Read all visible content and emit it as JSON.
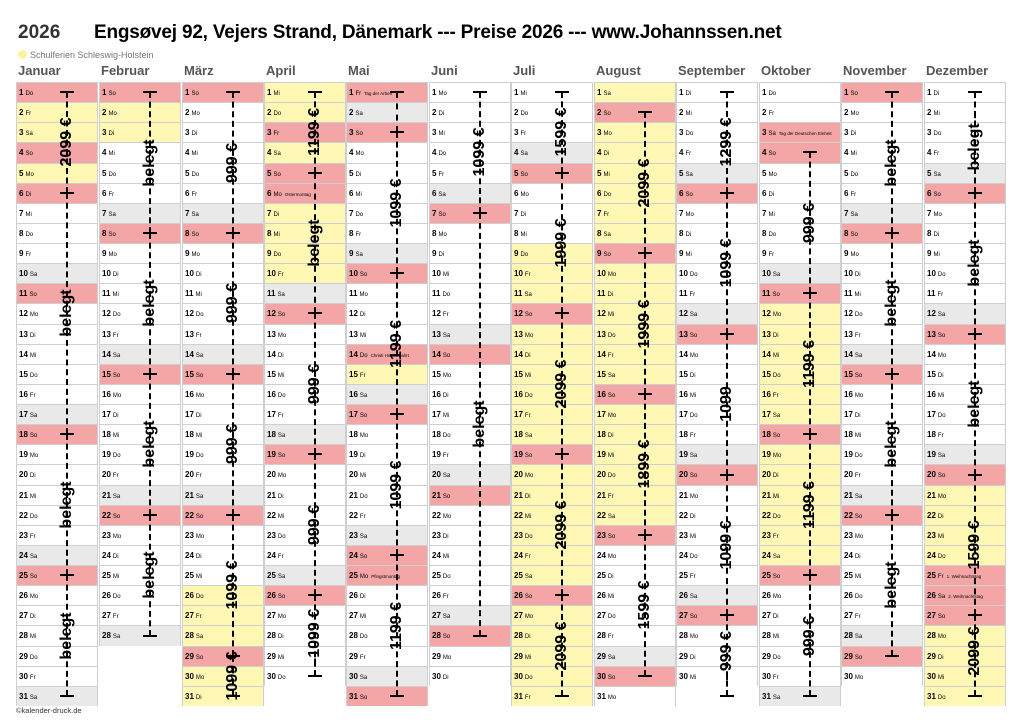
{
  "header": {
    "year": "2026",
    "title": "Engsøvej 92, Vejers Strand, Dänemark --- Preise 2026 ---  www.Johannssen.net",
    "legend": "Schulferien Schleswig-Holstein",
    "credit": "©kalender-druck.de"
  },
  "colors": {
    "sunday": "#f4a6a6",
    "weekend": "#e9e9e9",
    "school": "#fff8b5"
  },
  "months": [
    {
      "name": "Januar",
      "days": 31,
      "start": 3,
      "holidays": {
        "1": "",
        "6": ""
      },
      "school": [
        [
          1,
          6
        ]
      ]
    },
    {
      "name": "Februar",
      "days": 28,
      "start": 6,
      "holidays": {},
      "school": [
        [
          2,
          3
        ]
      ]
    },
    {
      "name": "März",
      "days": 31,
      "start": 6,
      "holidays": {},
      "school": [
        [
          26,
          31
        ]
      ]
    },
    {
      "name": "April",
      "days": 30,
      "start": 2,
      "holidays": {
        "3": "",
        "5": "",
        "6": "Ostermontag"
      },
      "school": [
        [
          1,
          10
        ]
      ]
    },
    {
      "name": "Mai",
      "days": 31,
      "start": 4,
      "holidays": {
        "1": "Tag der Arbeit",
        "14": "Christi Himmelfahrt",
        "24": "",
        "25": "Pfingstmontag"
      },
      "school": [
        [
          15,
          15
        ]
      ]
    },
    {
      "name": "Juni",
      "days": 30,
      "start": 0,
      "holidays": {},
      "school": []
    },
    {
      "name": "Juli",
      "days": 31,
      "start": 2,
      "holidays": {},
      "school": [
        [
          9,
          31
        ]
      ]
    },
    {
      "name": "August",
      "days": 31,
      "start": 5,
      "holidays": {},
      "school": [
        [
          1,
          22
        ]
      ]
    },
    {
      "name": "September",
      "days": 30,
      "start": 1,
      "holidays": {},
      "school": []
    },
    {
      "name": "Oktober",
      "days": 31,
      "start": 3,
      "holidays": {
        "3": "Tag der Deutschen Einheit"
      },
      "school": [
        [
          12,
          24
        ]
      ]
    },
    {
      "name": "November",
      "days": 30,
      "start": 6,
      "holidays": {},
      "school": []
    },
    {
      "name": "Dezember",
      "days": 31,
      "start": 1,
      "holidays": {
        "25": "1. Weihnachtstag",
        "26": "2. Weihnachtstag"
      },
      "school": [
        [
          21,
          31
        ]
      ]
    }
  ],
  "weekday_abbr": [
    "Mo",
    "Di",
    "Mi",
    "Do",
    "Fr",
    "Sa",
    "So"
  ],
  "bookings": [
    [
      {
        "from": 1,
        "to": 6,
        "label": "2099 €"
      },
      {
        "from": 6,
        "to": 18,
        "label": "belegt"
      },
      {
        "from": 18,
        "to": 25,
        "label": "belegt"
      },
      {
        "from": 25,
        "to": 31,
        "label": "belegt"
      }
    ],
    [
      {
        "from": 1,
        "to": 8,
        "label": "belegt"
      },
      {
        "from": 8,
        "to": 15,
        "label": "belegt"
      },
      {
        "from": 15,
        "to": 22,
        "label": "belegt"
      },
      {
        "from": 22,
        "to": 28,
        "label": "belegt"
      }
    ],
    [
      {
        "from": 1,
        "to": 8,
        "label": "999 €"
      },
      {
        "from": 8,
        "to": 15,
        "label": "999 €"
      },
      {
        "from": 15,
        "to": 22,
        "label": "999 €"
      },
      {
        "from": 22,
        "to": 29,
        "label": "1099 €"
      },
      {
        "from": 29,
        "to": 31,
        "label": "1099 €"
      }
    ],
    [
      {
        "from": 1,
        "to": 5,
        "label": "1199 €"
      },
      {
        "from": 5,
        "to": 12,
        "label": "belegt"
      },
      {
        "from": 12,
        "to": 19,
        "label": "999 €"
      },
      {
        "from": 19,
        "to": 26,
        "label": "999 €"
      },
      {
        "from": 26,
        "to": 30,
        "label": "-1099 €"
      }
    ],
    [
      {
        "from": 1,
        "to": 3,
        "label": ""
      },
      {
        "from": 3,
        "to": 10,
        "label": "1099 €"
      },
      {
        "from": 10,
        "to": 17,
        "label": "1199 €"
      },
      {
        "from": 17,
        "to": 24,
        "label": "1099 €"
      },
      {
        "from": 24,
        "to": 31,
        "label": "1199 €"
      }
    ],
    [
      {
        "from": 1,
        "to": 7,
        "label": "1099 €"
      },
      {
        "from": 7,
        "to": 28,
        "label": "belegt"
      }
    ],
    [
      {
        "from": 1,
        "to": 5,
        "label": "1599 €"
      },
      {
        "from": 5,
        "to": 12,
        "label": "1999 €"
      },
      {
        "from": 12,
        "to": 19,
        "label": "2099 €"
      },
      {
        "from": 19,
        "to": 26,
        "label": "2099 €"
      },
      {
        "from": 26,
        "to": 31,
        "label": "2099 €"
      }
    ],
    [
      {
        "from": 2,
        "to": 9,
        "label": "2099 €"
      },
      {
        "from": 9,
        "to": 16,
        "label": "1999 €"
      },
      {
        "from": 16,
        "to": 23,
        "label": "1899 €"
      },
      {
        "from": 23,
        "to": 30,
        "label": "1599 €"
      }
    ],
    [
      {
        "from": 1,
        "to": 6,
        "label": "1299 €"
      },
      {
        "from": 6,
        "to": 13,
        "label": "1099 €"
      },
      {
        "from": 13,
        "to": 20,
        "label": "1099"
      },
      {
        "from": 20,
        "to": 27,
        "label": "1099 €"
      },
      {
        "from": 27,
        "to": 31,
        "label": "- 999 €"
      }
    ],
    [
      {
        "from": 4,
        "to": 11,
        "label": "999 €"
      },
      {
        "from": 11,
        "to": 18,
        "label": "1199 €"
      },
      {
        "from": 18,
        "to": 25,
        "label": "1199 €"
      },
      {
        "from": 25,
        "to": 31,
        "label": "999 €"
      }
    ],
    [
      {
        "from": 1,
        "to": 8,
        "label": "belegt"
      },
      {
        "from": 8,
        "to": 15,
        "label": "belegt"
      },
      {
        "from": 15,
        "to": 22,
        "label": "belegt"
      },
      {
        "from": 22,
        "to": 29,
        "label": "belegt"
      }
    ],
    [
      {
        "from": 1,
        "to": 6,
        "label": "belegt -"
      },
      {
        "from": 6,
        "to": 13,
        "label": "belegt"
      },
      {
        "from": 13,
        "to": 20,
        "label": "belegt"
      },
      {
        "from": 20,
        "to": 27,
        "label": "1599 €"
      },
      {
        "from": 27,
        "to": 31,
        "label": "- 2099 €"
      }
    ]
  ]
}
